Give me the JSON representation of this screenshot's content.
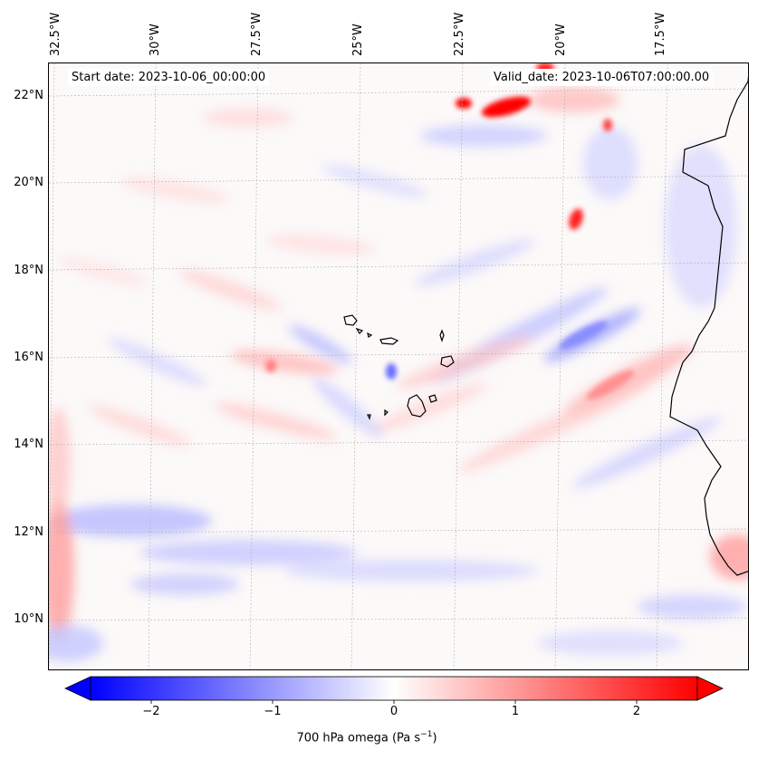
{
  "annotations": {
    "start_date": "Start date: 2023-10-06_00:00:00",
    "valid_date": "Valid_date: 2023-10-06T07:00:00.00"
  },
  "longitude_labels": [
    "32.5°W",
    "30°W",
    "27.5°W",
    "25°W",
    "22.5°W",
    "20°W",
    "17.5°W"
  ],
  "latitude_labels": [
    "22°N",
    "20°N",
    "18°N",
    "16°N",
    "14°N",
    "12°N",
    "10°N"
  ],
  "colorbar": {
    "ticks": [
      "−2",
      "−1",
      "0",
      "1",
      "2"
    ],
    "tick_values": [
      -2,
      -1,
      0,
      1,
      2
    ],
    "range": [
      -2.5,
      2.5
    ],
    "title_prefix": "700 hPa omega (Pa s",
    "title_exp": "−1",
    "title_suffix": ")",
    "colormap": "bwr",
    "extend": "both",
    "colors": {
      "negative": "#0000ff",
      "zero": "#ffffff",
      "positive": "#ff0000"
    }
  }
}
